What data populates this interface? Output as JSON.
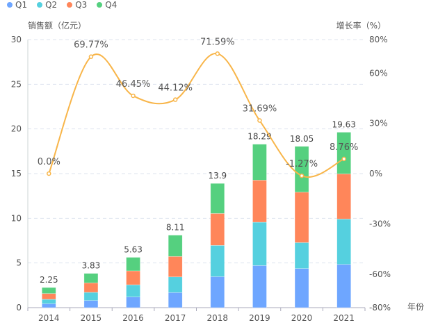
{
  "chart_data": {
    "type": "bar",
    "stacked": true,
    "categories": [
      "2014",
      "2015",
      "2016",
      "2017",
      "2018",
      "2019",
      "2020",
      "2021"
    ],
    "series": [
      {
        "name": "Q1",
        "color": "#6ea6ff",
        "values": [
          0.44,
          0.8,
          1.19,
          1.69,
          3.47,
          4.71,
          4.38,
          4.84
        ]
      },
      {
        "name": "Q2",
        "color": "#55d0df",
        "values": [
          0.49,
          0.91,
          1.37,
          1.75,
          3.5,
          4.85,
          2.9,
          5.08
        ]
      },
      {
        "name": "Q3",
        "color": "#ff865a",
        "values": [
          0.65,
          1.06,
          1.56,
          2.29,
          3.57,
          4.71,
          5.64,
          5.05
        ]
      },
      {
        "name": "Q4",
        "color": "#55d07f",
        "values": [
          0.67,
          1.06,
          1.51,
          2.38,
          3.36,
          4.02,
          5.13,
          4.66
        ]
      }
    ],
    "totals": [
      "2.25",
      "3.83",
      "5.63",
      "8.11",
      "13.9",
      "18.29",
      "18.05",
      "19.63"
    ],
    "line": {
      "name": "增长率",
      "color": "#f8b549",
      "values": [
        0.0,
        69.77,
        46.45,
        44.12,
        71.59,
        31.69,
        -1.27,
        8.76
      ],
      "labels": [
        "0.0%",
        "69.77%",
        "46.45%",
        "44.12%",
        "71.59%",
        "31.69%",
        "-1.27%",
        "8.76%"
      ]
    },
    "ylabel": "销售额（亿元）",
    "y2label": "增长率（%）",
    "xlabel": "年份",
    "ylim": [
      0,
      30
    ],
    "yticks": [
      "0",
      "5",
      "10",
      "15",
      "20",
      "25",
      "30"
    ],
    "y2lim": [
      -80,
      80
    ],
    "y2ticks": [
      {
        "v": 80,
        "t": "80%"
      },
      {
        "v": 60,
        "t": "60%"
      },
      {
        "v": 30,
        "t": "30%"
      },
      {
        "v": 0,
        "t": "0%"
      },
      {
        "v": -30,
        "t": "-30%"
      },
      {
        "v": -60,
        "t": "-60%"
      },
      {
        "v": -80,
        "t": "-80%"
      }
    ],
    "grid": true,
    "legend_position": "top-left"
  }
}
